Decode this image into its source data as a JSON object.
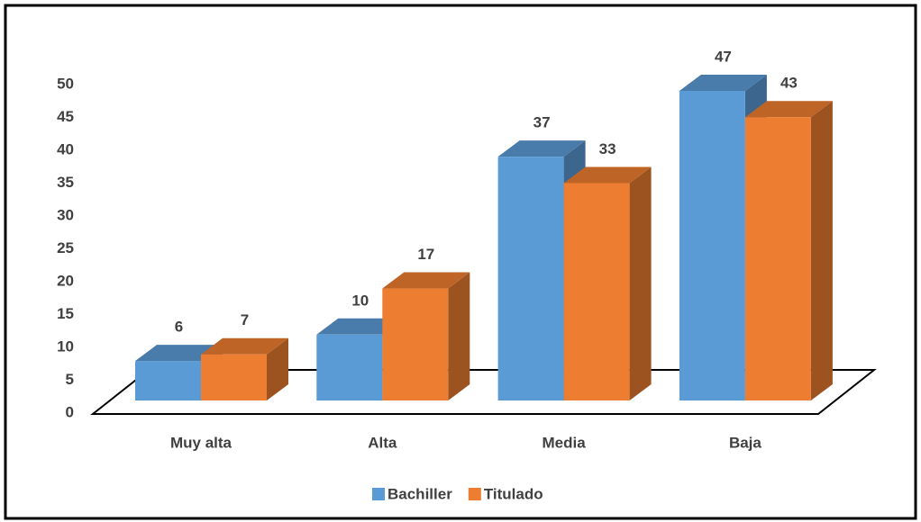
{
  "chart_data": {
    "type": "bar3d",
    "categories": [
      "Muy alta",
      "Alta",
      "Media",
      "Baja"
    ],
    "series": [
      {
        "name": "Bachiller",
        "color": "#5b9bd5",
        "values": [
          6,
          10,
          37,
          47
        ]
      },
      {
        "name": "Titulado",
        "color": "#ed7d31",
        "values": [
          7,
          17,
          33,
          43
        ]
      }
    ],
    "ylim": [
      0,
      50
    ],
    "yticks": [
      0,
      5,
      10,
      15,
      20,
      25,
      30,
      35,
      40,
      45,
      50
    ],
    "legend": "bottom",
    "data_labels": true
  }
}
